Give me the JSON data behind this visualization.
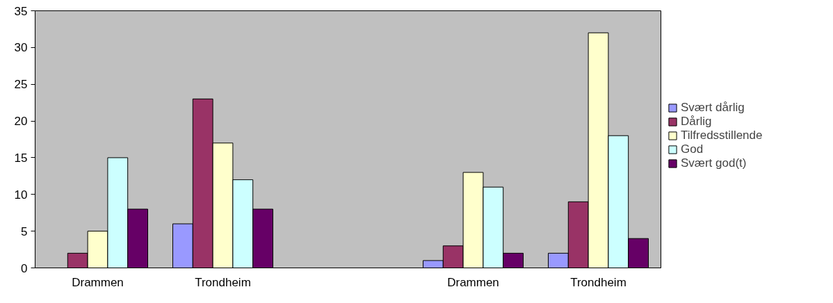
{
  "chart_data": {
    "type": "bar",
    "categories": [
      "Drammen",
      "Trondheim",
      null,
      "Drammen",
      "Trondheim"
    ],
    "series": [
      {
        "name": "Svært dårlig",
        "color": "#9999ff",
        "values": [
          null,
          6,
          null,
          1,
          2
        ]
      },
      {
        "name": "Dårlig",
        "color": "#993366",
        "values": [
          2,
          23,
          null,
          3,
          9
        ]
      },
      {
        "name": "Tilfredsstillende",
        "color": "#ffffcc",
        "values": [
          5,
          17,
          null,
          13,
          32
        ]
      },
      {
        "name": "God",
        "color": "#ccffff",
        "values": [
          15,
          12,
          null,
          11,
          18
        ]
      },
      {
        "name": "Svært god(t)",
        "color": "#660066",
        "values": [
          8,
          8,
          null,
          2,
          4
        ]
      }
    ],
    "ylim": [
      0,
      35
    ],
    "yticks": [
      0,
      5,
      10,
      15,
      20,
      25,
      30,
      35
    ],
    "grid": false,
    "legend": "right"
  }
}
